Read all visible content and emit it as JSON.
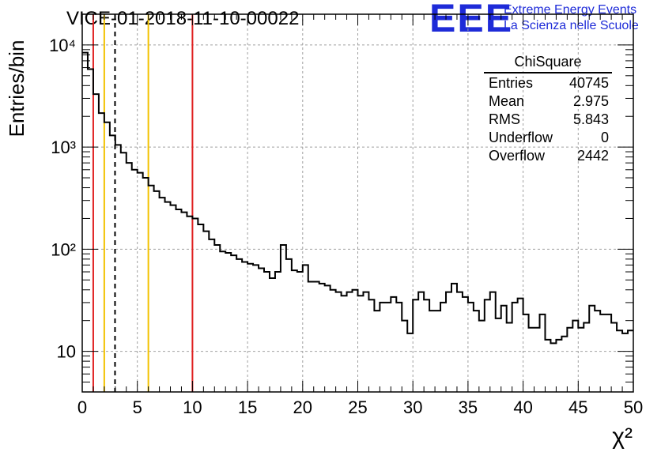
{
  "chart_data": {
    "type": "histogram",
    "title": "VICE-01-2018-11-10-00022",
    "xlabel": "χ²",
    "ylabel": "Entries/bin",
    "xlim": [
      0,
      50
    ],
    "ylim": [
      4,
      20000
    ],
    "yscale": "log",
    "grid": true,
    "bin_width": 0.5,
    "x_ticks": [
      "0",
      "5",
      "10",
      "15",
      "20",
      "25",
      "30",
      "35",
      "40",
      "45",
      "50"
    ],
    "y_ticks": [
      "10",
      "10²",
      "10³",
      "10⁴"
    ],
    "counts": [
      8400,
      5800,
      3300,
      2150,
      1750,
      1300,
      1050,
      880,
      700,
      600,
      560,
      500,
      420,
      370,
      320,
      290,
      270,
      245,
      230,
      210,
      200,
      175,
      150,
      125,
      110,
      95,
      92,
      87,
      80,
      75,
      72,
      70,
      65,
      60,
      52,
      60,
      110,
      80,
      62,
      60,
      70,
      48,
      48,
      46,
      44,
      40,
      38,
      35,
      38,
      40,
      35,
      38,
      32,
      25,
      30,
      30,
      34,
      30,
      20,
      15,
      32,
      38,
      32,
      25,
      25,
      30,
      38,
      46,
      38,
      34,
      30,
      25,
      20,
      32,
      38,
      21,
      28,
      19,
      30,
      33,
      23,
      17,
      17,
      23,
      13,
      12,
      13,
      14,
      17,
      20,
      17,
      19,
      28,
      25,
      23,
      23,
      19,
      16,
      15,
      16
    ],
    "vertical_lines": [
      {
        "x": 1,
        "color": "#e02020",
        "style": "solid"
      },
      {
        "x": 2,
        "color": "#f2c200",
        "style": "solid"
      },
      {
        "x": 2.975,
        "color": "#000000",
        "style": "dashed"
      },
      {
        "x": 6,
        "color": "#f2c200",
        "style": "solid"
      },
      {
        "x": 10,
        "color": "#e02020",
        "style": "solid"
      }
    ]
  },
  "logo": {
    "mark": "EEE",
    "line1": "Extreme Energy Events",
    "line2": "La Scienza nelle Scuole",
    "color": "#1e2bd8"
  },
  "stats": {
    "name": "ChiSquare",
    "rows": [
      {
        "label": "Entries",
        "value": "40745"
      },
      {
        "label": "Mean",
        "value": "2.975"
      },
      {
        "label": "RMS",
        "value": "5.843"
      },
      {
        "label": "Underflow",
        "value": "0"
      },
      {
        "label": "Overflow",
        "value": "2442"
      }
    ]
  }
}
